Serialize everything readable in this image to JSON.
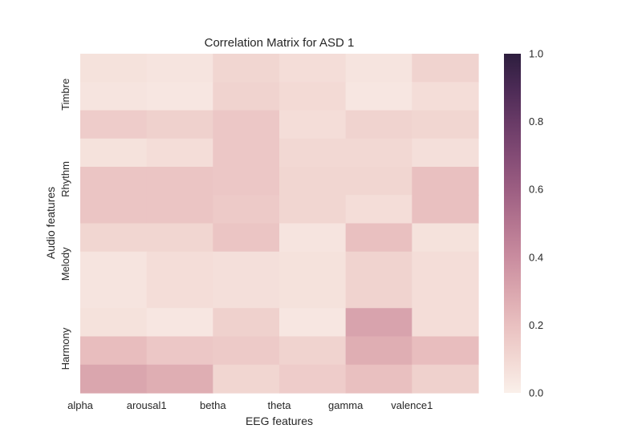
{
  "chart_data": {
    "type": "heatmap",
    "title": "Correlation Matrix for ASD 1",
    "xlabel": "EEG features",
    "ylabel": "Audio features",
    "x_tick_labels": [
      "alpha",
      "arousal1",
      "betha",
      "theta",
      "gamma",
      "valence1"
    ],
    "y_tick_labels": [
      "Timbre",
      "Rhythm",
      "Melody",
      "Harmony"
    ],
    "n_columns": 6,
    "n_rows": 12,
    "colorbar": {
      "min": 0.0,
      "max": 1.0,
      "ticks": [
        "0.0",
        "0.2",
        "0.4",
        "0.6",
        "0.8",
        "1.0"
      ]
    },
    "values": [
      [
        0.06,
        0.05,
        0.11,
        0.08,
        0.05,
        0.12
      ],
      [
        0.05,
        0.04,
        0.12,
        0.09,
        0.04,
        0.08
      ],
      [
        0.15,
        0.13,
        0.17,
        0.08,
        0.12,
        0.11
      ],
      [
        0.06,
        0.08,
        0.17,
        0.1,
        0.1,
        0.07
      ],
      [
        0.18,
        0.18,
        0.17,
        0.11,
        0.11,
        0.2
      ],
      [
        0.18,
        0.18,
        0.16,
        0.11,
        0.08,
        0.2
      ],
      [
        0.11,
        0.11,
        0.18,
        0.05,
        0.2,
        0.06
      ],
      [
        0.05,
        0.08,
        0.07,
        0.06,
        0.12,
        0.08
      ],
      [
        0.05,
        0.08,
        0.07,
        0.06,
        0.12,
        0.08
      ],
      [
        0.06,
        0.04,
        0.13,
        0.04,
        0.31,
        0.08
      ],
      [
        0.21,
        0.17,
        0.16,
        0.12,
        0.27,
        0.21
      ],
      [
        0.3,
        0.27,
        0.11,
        0.15,
        0.2,
        0.13
      ]
    ],
    "grid": false
  }
}
